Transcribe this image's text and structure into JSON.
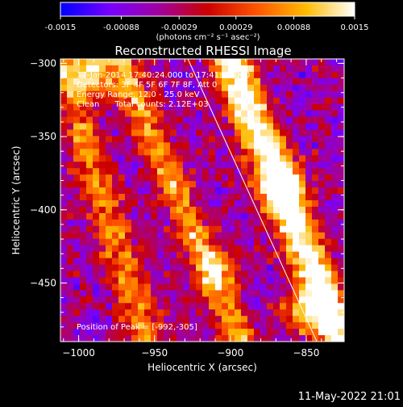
{
  "colorbar": {
    "ticks": [
      "-0.0015",
      "-0.00088",
      "-0.00029",
      "0.00029",
      "0.00088",
      "0.0015"
    ],
    "tick_values": [
      -0.0015,
      -0.00088,
      -0.00029,
      0.00029,
      0.00088,
      0.0015
    ],
    "range": [
      -0.0015,
      0.0015
    ],
    "unit_label": "(photons cm⁻² s⁻¹ asec⁻²)",
    "stops": [
      "#0000ff",
      "#7700ff",
      "#a000a0",
      "#cc0000",
      "#ff5500",
      "#ffbb00",
      "#ffffff"
    ]
  },
  "title": "Reconstructed RHESSI Image",
  "annotations": {
    "time": "17-Jan-2014 17:40:24.000 to 17:41:20.000",
    "detectors": "Detectors: 3F 4F 5F 6F 7F 8F, Att 0",
    "energy": "Energy Range: 12.0 - 25.0 keV",
    "clean": "Clean      Total counts: 2.12E+03",
    "peak": "Position of Peak = [-992,-305]"
  },
  "footer": {
    "timestamp": "11-May-2022 21:01"
  },
  "chart_data": {
    "type": "heatmap",
    "title": "Reconstructed RHESSI Image",
    "xlabel": "Heliocentric X (arcsec)",
    "ylabel": "Heliocentric Y (arcsec)",
    "xlim": [
      -1012,
      -825
    ],
    "ylim": [
      -490,
      -297
    ],
    "xticks": [
      -1000,
      -950,
      -900,
      -850
    ],
    "yticks": [
      -300,
      -350,
      -400,
      -450
    ],
    "xtick_labels": [
      "−1000",
      "−950",
      "−900",
      "−850"
    ],
    "ytick_labels": [
      "−300",
      "−350",
      "−400",
      "−450"
    ],
    "colorscale": "rhessi blue-purple-red-yellow-white",
    "value_range": [
      -0.0015,
      0.0015
    ],
    "peak": [
      -992,
      -305
    ],
    "limb_line": {
      "x": [
        -928,
        -843
      ],
      "y": [
        -297,
        -490
      ]
    },
    "bright_features": [
      {
        "name": "",
        "x": -868,
        "y": -385,
        "value": 0.0013
      },
      {
        "name": "",
        "x": -992,
        "y": -305,
        "value": 0.0015
      },
      {
        "name": "",
        "x": -910,
        "y": -440,
        "value": 0.0009
      },
      {
        "name": "",
        "x": -850,
        "y": -470,
        "value": 0.0014
      }
    ]
  }
}
